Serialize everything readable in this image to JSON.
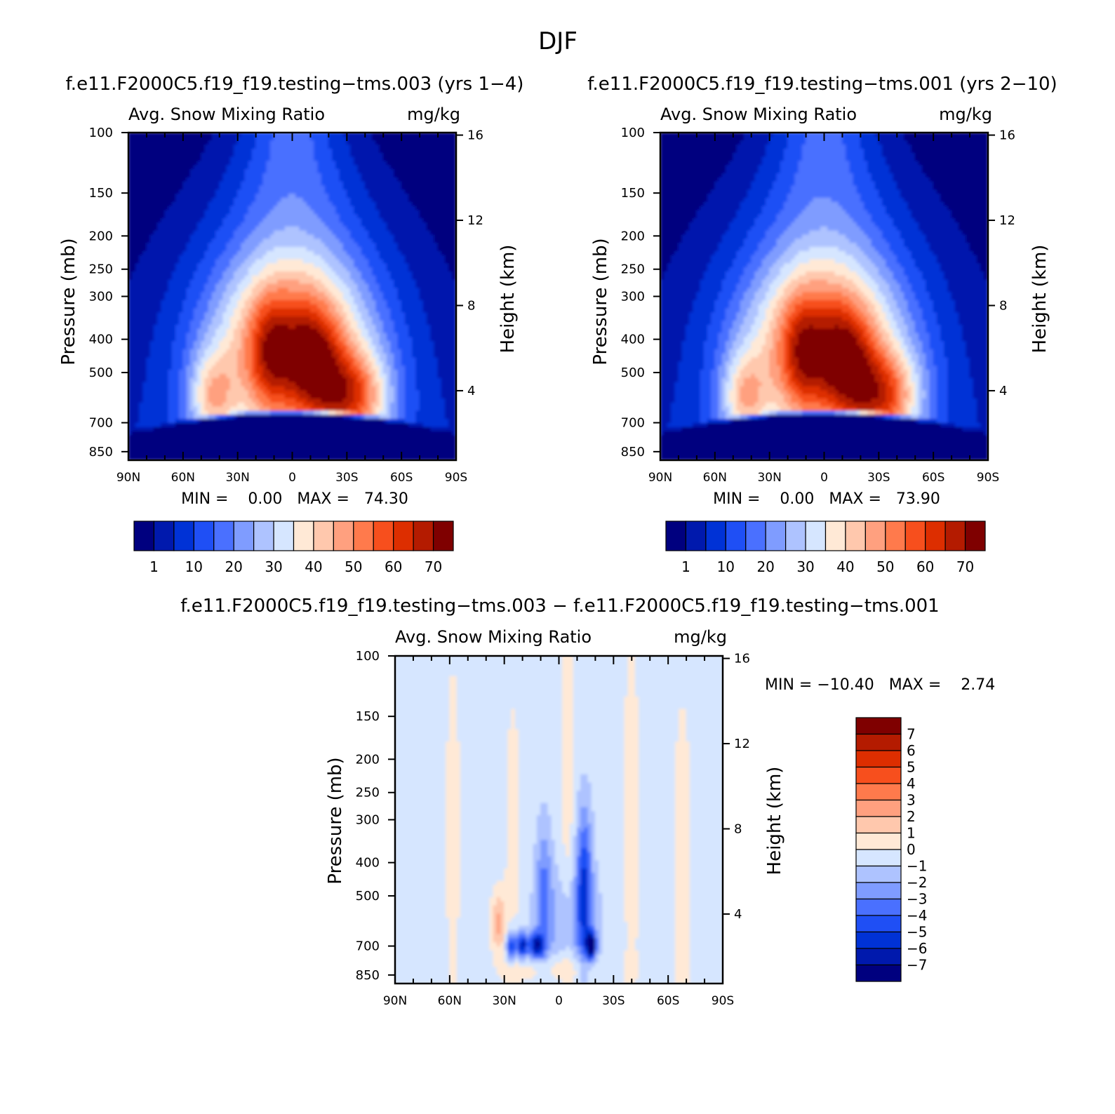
{
  "figure": {
    "title": "DJF"
  },
  "colors": {
    "main": [
      "#00007f",
      "#0019ad",
      "#0032d6",
      "#1f4ff5",
      "#4a70ff",
      "#7f9cff",
      "#aec3ff",
      "#d6e6ff",
      "#ffe9d6",
      "#ffc8ad",
      "#ffa07f",
      "#ff7a4c",
      "#f74f1d",
      "#dd2e00",
      "#b41b00",
      "#7f0000"
    ],
    "diff": [
      "#7f0000",
      "#b41b00",
      "#dd2e00",
      "#f74f1d",
      "#ff7a4c",
      "#ffa07f",
      "#ffc8ad",
      "#ffe9d6",
      "#d6e6ff",
      "#aec3ff",
      "#7f9cff",
      "#4a70ff",
      "#1f4ff5",
      "#0032d6",
      "#0019ad",
      "#00007f"
    ]
  },
  "chart_data": [
    {
      "type": "heatmap",
      "title": "f.e11.F2000C5.f19_f19.testing−tms.003 (yrs 1−4)",
      "subtitle_left": "Avg. Snow Mixing Ratio",
      "subtitle_right": "mg/kg",
      "xlabel": "",
      "ylabel": "Pressure (mb)",
      "y2label": "Height (km)",
      "x_ticks": [
        "90N",
        "60N",
        "30N",
        "0",
        "30S",
        "60S",
        "90S"
      ],
      "y_ticks": [
        "100",
        "150",
        "200",
        "250",
        "300",
        "400",
        "500",
        "700",
        "850"
      ],
      "y_tick_values": [
        100,
        150,
        200,
        250,
        300,
        400,
        500,
        700,
        850
      ],
      "y2_ticks": [
        "16",
        "12",
        "8",
        "4"
      ],
      "y2_tick_values": [
        16,
        12,
        8,
        4
      ],
      "ylim": [
        100,
        900
      ],
      "min_label": "MIN =    0.00   MAX =   74.30",
      "min_value": 0.0,
      "max_value": 74.3,
      "colorbar_labels": [
        "1",
        "10",
        "20",
        "30",
        "40",
        "50",
        "60",
        "70"
      ],
      "colorbar_levels": [
        1,
        5,
        10,
        15,
        20,
        25,
        30,
        35,
        40,
        45,
        50,
        55,
        60,
        65,
        70
      ]
    },
    {
      "type": "heatmap",
      "title": "f.e11.F2000C5.f19_f19.testing−tms.001 (yrs 2−10)",
      "subtitle_left": "Avg. Snow Mixing Ratio",
      "subtitle_right": "mg/kg",
      "xlabel": "",
      "ylabel": "Pressure (mb)",
      "y2label": "Height (km)",
      "x_ticks": [
        "90N",
        "60N",
        "30N",
        "0",
        "30S",
        "60S",
        "90S"
      ],
      "y_ticks": [
        "100",
        "150",
        "200",
        "250",
        "300",
        "400",
        "500",
        "700",
        "850"
      ],
      "y_tick_values": [
        100,
        150,
        200,
        250,
        300,
        400,
        500,
        700,
        850
      ],
      "y2_ticks": [
        "16",
        "12",
        "8",
        "4"
      ],
      "y2_tick_values": [
        16,
        12,
        8,
        4
      ],
      "ylim": [
        100,
        900
      ],
      "min_label": "MIN =    0.00   MAX =   73.90",
      "min_value": 0.0,
      "max_value": 73.9,
      "colorbar_labels": [
        "1",
        "10",
        "20",
        "30",
        "40",
        "50",
        "60",
        "70"
      ],
      "colorbar_levels": [
        1,
        5,
        10,
        15,
        20,
        25,
        30,
        35,
        40,
        45,
        50,
        55,
        60,
        65,
        70
      ]
    },
    {
      "type": "heatmap",
      "title": "f.e11.F2000C5.f19_f19.testing−tms.003 − f.e11.F2000C5.f19_f19.testing−tms.001",
      "subtitle_left": "Avg. Snow Mixing Ratio",
      "subtitle_right": "mg/kg",
      "xlabel": "",
      "ylabel": "Pressure (mb)",
      "y2label": "Height (km)",
      "x_ticks": [
        "90N",
        "60N",
        "30N",
        "0",
        "30S",
        "60S",
        "90S"
      ],
      "y_ticks": [
        "100",
        "150",
        "200",
        "250",
        "300",
        "400",
        "500",
        "700",
        "850"
      ],
      "y_tick_values": [
        100,
        150,
        200,
        250,
        300,
        400,
        500,
        700,
        850
      ],
      "y2_ticks": [
        "16",
        "12",
        "8",
        "4"
      ],
      "y2_tick_values": [
        16,
        12,
        8,
        4
      ],
      "ylim": [
        100,
        900
      ],
      "min_label": "MIN = −10.40   MAX =    2.74",
      "min_value": -10.4,
      "max_value": 2.74,
      "colorbar_labels": [
        "7",
        "6",
        "5",
        "4",
        "3",
        "2",
        "1",
        "0",
        "−1",
        "−2",
        "−3",
        "−4",
        "−5",
        "−6",
        "−7"
      ],
      "colorbar_levels": [
        7,
        6,
        5,
        4,
        3,
        2,
        1,
        0,
        -1,
        -2,
        -3,
        -4,
        -5,
        -6,
        -7
      ]
    }
  ]
}
